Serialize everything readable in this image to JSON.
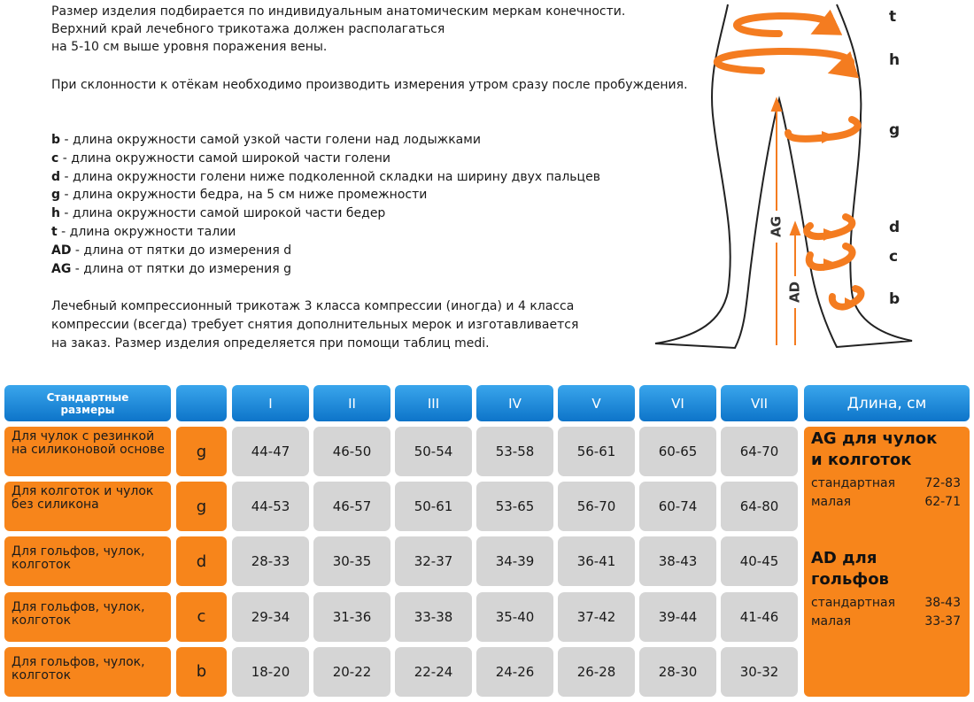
{
  "intro": [
    "Размер изделия подбирается по  индивидуальным анатомическим меркам конечности.",
    "Верхний край лечебного трикотажа должен располагаться",
    "на 5-10 см выше уровня поражения вены.",
    "При склонности к отёкам необходимо производить измерения утром сразу после пробуждения."
  ],
  "legend": [
    {
      "key": "b",
      "text": " - длина окружности самой узкой части голени над лодыжками"
    },
    {
      "key": "c",
      "text": " -  длина окружности самой широкой части голени"
    },
    {
      "key": "d",
      "text": " - длина окружности голени ниже подколенной складки на ширину двух пальцев"
    },
    {
      "key": "g",
      "text": " - длина окружности бедра, на 5 см ниже промежности"
    },
    {
      "key": "h",
      "text": " - длина окружности самой широкой части бедер"
    },
    {
      "key": "t",
      "text": " -  длина окружности талии"
    },
    {
      "key": "AD",
      "text": " - длина от пятки до измерения d"
    },
    {
      "key": "AG",
      "text": " - длина от пятки до измерения g"
    }
  ],
  "note": [
    "Лечебный компрессионный трикотаж 3 класса компрессии (иногда) и 4 класса",
    "компрессии (всегда) требует снятия дополнительных мерок и изготавливается",
    "на заказ. Размер изделия определяется при помощи таблиц medi."
  ],
  "diagram": {
    "points": [
      "t",
      "h",
      "g",
      "d",
      "c",
      "b"
    ],
    "axes": [
      "AG",
      "AD"
    ]
  },
  "table": {
    "header": "Стандартные размеры",
    "sizes": [
      "I",
      "II",
      "III",
      "IV",
      "V",
      "VI",
      "VII"
    ],
    "length_header": "Длина, см",
    "rows": [
      {
        "label": "Для чулок с резинкой на силиконовой основе",
        "key": "g",
        "values": [
          "44-47",
          "46-50",
          "50-54",
          "53-58",
          "56-61",
          "60-65",
          "64-70"
        ]
      },
      {
        "label": "Для колготок и чулок без силикона",
        "key": "g",
        "values": [
          "44-53",
          "46-57",
          "50-61",
          "53-65",
          "56-70",
          "60-74",
          "64-80"
        ]
      },
      {
        "label": "Для гольфов, чулок, колготок",
        "key": "d",
        "values": [
          "28-33",
          "30-35",
          "32-37",
          "34-39",
          "36-41",
          "38-43",
          "40-45"
        ]
      },
      {
        "label": "Для гольфов, чулок, колготок",
        "key": "c",
        "values": [
          "29-34",
          "31-36",
          "33-38",
          "35-40",
          "37-42",
          "39-44",
          "41-46"
        ]
      },
      {
        "label": "Для гольфов, чулок, колготок",
        "key": "b",
        "values": [
          "18-20",
          "20-22",
          "22-24",
          "24-26",
          "26-28",
          "28-30",
          "30-32"
        ]
      }
    ],
    "length": [
      {
        "title": [
          "AG для чулок",
          "и колготок"
        ],
        "items": [
          {
            "name": "стандартная",
            "range": "72-83"
          },
          {
            "name": "малая",
            "range": "62-71"
          }
        ]
      },
      {
        "title": [
          "AD для",
          "гольфов"
        ],
        "items": [
          {
            "name": "стандартная",
            "range": "38-43"
          },
          {
            "name": "малая",
            "range": "33-37"
          }
        ]
      }
    ]
  }
}
